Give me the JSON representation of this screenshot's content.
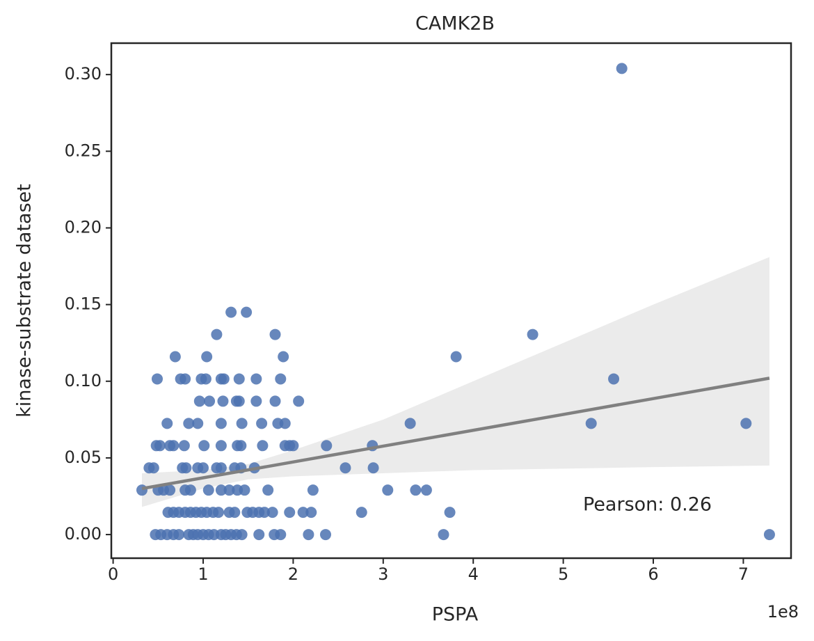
{
  "chart_data": {
    "type": "scatter",
    "title": "CAMK2B",
    "x_label": "PSPA",
    "y_label": "kinase-substrate dataset",
    "x_offset_label": "1e8",
    "annotation": "Pearson: 0.26",
    "color": "#4c72b0",
    "fit_color": "#808080",
    "band_color": "#ebebeb",
    "x": [
      0.47,
      0.53,
      0.6,
      0.67,
      0.73,
      0.84,
      0.89,
      0.94,
      1.0,
      1.06,
      1.12,
      1.2,
      1.25,
      1.31,
      1.37,
      1.43,
      1.62,
      1.79,
      1.86,
      2.17,
      2.36,
      3.67,
      7.29,
      0.61,
      0.67,
      0.73,
      0.8,
      0.86,
      0.92,
      0.98,
      1.04,
      1.11,
      1.17,
      1.29,
      1.35,
      1.49,
      1.55,
      1.62,
      1.68,
      1.77,
      1.96,
      2.11,
      2.2,
      2.76,
      3.74,
      0.32,
      0.5,
      0.56,
      0.63,
      0.8,
      0.86,
      1.06,
      1.2,
      1.29,
      1.38,
      1.46,
      1.72,
      2.22,
      3.05,
      3.36,
      3.48,
      0.4,
      0.45,
      0.77,
      0.81,
      0.94,
      1.0,
      1.15,
      1.2,
      1.35,
      1.42,
      1.57,
      2.58,
      2.89,
      0.48,
      0.52,
      0.63,
      0.67,
      0.79,
      1.01,
      1.2,
      1.38,
      1.42,
      1.66,
      1.91,
      1.96,
      2.0,
      2.37,
      2.88,
      0.6,
      0.84,
      0.94,
      1.2,
      1.43,
      1.65,
      1.83,
      1.91,
      3.3,
      5.31,
      7.03,
      0.96,
      1.07,
      1.22,
      1.37,
      1.4,
      1.59,
      1.8,
      2.06,
      0.49,
      0.75,
      0.8,
      0.98,
      1.03,
      1.2,
      1.23,
      1.4,
      1.59,
      1.86,
      5.56,
      0.69,
      1.04,
      1.89,
      3.81,
      1.15,
      1.8,
      4.66,
      1.31,
      1.48,
      5.65
    ],
    "y": [
      0,
      0,
      0,
      0,
      0,
      0,
      0,
      0,
      0,
      0,
      0,
      0,
      0,
      0,
      0,
      0,
      0,
      0,
      0,
      0,
      0,
      0,
      0,
      0.0145,
      0.0145,
      0.0145,
      0.0145,
      0.0145,
      0.0145,
      0.0145,
      0.0145,
      0.0145,
      0.0145,
      0.0145,
      0.0145,
      0.0145,
      0.0145,
      0.0145,
      0.0145,
      0.0145,
      0.0145,
      0.0145,
      0.0145,
      0.0145,
      0.0145,
      0.029,
      0.029,
      0.029,
      0.029,
      0.029,
      0.029,
      0.029,
      0.029,
      0.029,
      0.029,
      0.029,
      0.029,
      0.029,
      0.029,
      0.029,
      0.029,
      0.0435,
      0.0435,
      0.0435,
      0.0435,
      0.0435,
      0.0435,
      0.0435,
      0.0435,
      0.0435,
      0.0435,
      0.0435,
      0.0435,
      0.0435,
      0.058,
      0.058,
      0.058,
      0.058,
      0.058,
      0.058,
      0.058,
      0.058,
      0.058,
      0.058,
      0.058,
      0.058,
      0.058,
      0.058,
      0.058,
      0.0725,
      0.0725,
      0.0725,
      0.0725,
      0.0725,
      0.0725,
      0.0725,
      0.0725,
      0.0725,
      0.0725,
      0.0725,
      0.087,
      0.087,
      0.087,
      0.087,
      0.087,
      0.087,
      0.087,
      0.087,
      0.1015,
      0.1015,
      0.1015,
      0.1015,
      0.1015,
      0.1015,
      0.1015,
      0.1015,
      0.1015,
      0.1015,
      0.1015,
      0.116,
      0.116,
      0.116,
      0.116,
      0.1305,
      0.1305,
      0.1305,
      0.145,
      0.145,
      0.304
    ],
    "fit": {
      "x": [
        0.32,
        7.29
      ],
      "y": [
        0.03,
        0.102
      ]
    },
    "ci": {
      "x": [
        0.32,
        1.0,
        1.5,
        2.0,
        3.0,
        4.0,
        5.0,
        6.0,
        7.29
      ],
      "lower": [
        0.018,
        0.03,
        0.036,
        0.038,
        0.04,
        0.042,
        0.043,
        0.044,
        0.045
      ],
      "upper": [
        0.04,
        0.042,
        0.046,
        0.055,
        0.075,
        0.1,
        0.125,
        0.15,
        0.181
      ]
    },
    "xlim": [
      -0.02,
      7.53
    ],
    "ylim": [
      -0.0154,
      0.3205
    ],
    "xticks": [
      0,
      1,
      2,
      3,
      4,
      5,
      6,
      7
    ],
    "yticks": [
      {
        "value": 0,
        "label": "0.00"
      },
      {
        "value": 0.05,
        "label": "0.05"
      },
      {
        "value": 0.1,
        "label": "0.10"
      },
      {
        "value": 0.15,
        "label": "0.15"
      },
      {
        "value": 0.2,
        "label": "0.20"
      },
      {
        "value": 0.25,
        "label": "0.25"
      },
      {
        "value": 0.3,
        "label": "0.30"
      }
    ]
  }
}
